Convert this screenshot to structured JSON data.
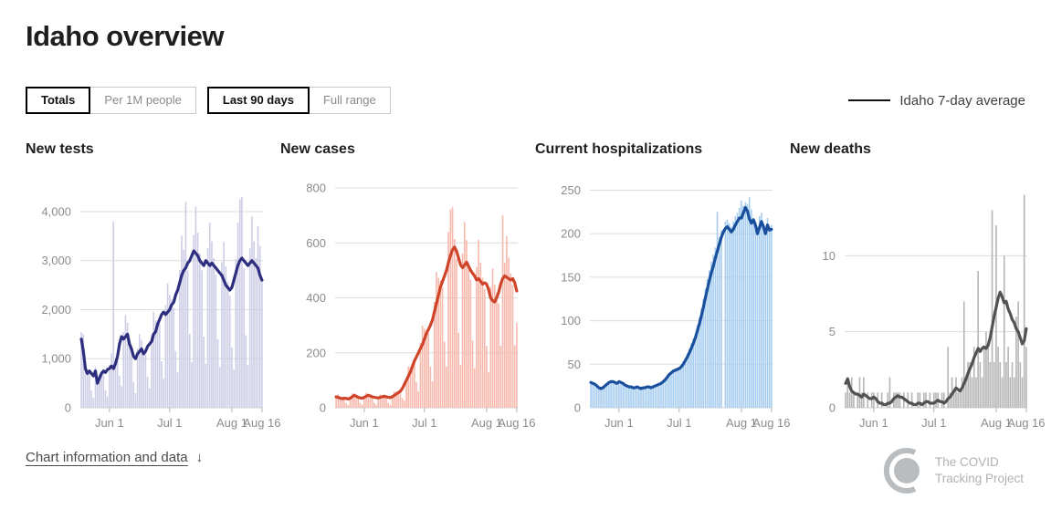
{
  "page": {
    "title": "Idaho overview"
  },
  "controls": {
    "metric": [
      {
        "label": "Totals",
        "active": true
      },
      {
        "label": "Per 1M people",
        "active": false
      }
    ],
    "range": [
      {
        "label": "Last 90 days",
        "active": true
      },
      {
        "label": "Full range",
        "active": false
      }
    ]
  },
  "legend": {
    "label": "Idaho 7-day average",
    "line_color": "#111111"
  },
  "footer": {
    "link_label": "Chart information and data",
    "link_arrow": "↓",
    "logo_line1": "The COVID",
    "logo_line2": "Tracking Project"
  },
  "chart_data": [
    {
      "type": "bar",
      "title": "New tests",
      "bar_color": "#cdcde6",
      "line_color": "#2e2e7f",
      "ylim": [
        0,
        4650
      ],
      "grid": true,
      "yticks": [
        {
          "v": 0,
          "label": "0"
        },
        {
          "v": 1000,
          "label": "1,000"
        },
        {
          "v": 2000,
          "label": "2,000"
        },
        {
          "v": 3000,
          "label": "3,000"
        },
        {
          "v": 4000,
          "label": "4,000"
        }
      ],
      "x_ticks": [
        {
          "label": "Jun 1",
          "day": 14
        },
        {
          "label": "Jul 1",
          "day": 44
        },
        {
          "label": "Aug 1",
          "day": 75
        },
        {
          "label": "Aug 16",
          "day": 90
        }
      ],
      "bars": [
        1540,
        1500,
        920,
        740,
        710,
        350,
        200,
        830,
        650,
        690,
        740,
        710,
        360,
        230,
        880,
        1110,
        3800,
        950,
        1000,
        650,
        440,
        1540,
        1890,
        1730,
        1370,
        1140,
        530,
        300,
        1210,
        1500,
        1380,
        1160,
        1090,
        630,
        390,
        1490,
        1950,
        1780,
        1790,
        1710,
        950,
        590,
        2090,
        2540,
        2300,
        2210,
        2040,
        1150,
        720,
        2810,
        3510,
        3220,
        4200,
        2800,
        1500,
        930,
        3520,
        4100,
        3570,
        3150,
        2800,
        1450,
        900,
        3250,
        3770,
        3390,
        3050,
        2710,
        1400,
        830,
        2970,
        3380,
        2880,
        2570,
        2280,
        1230,
        780,
        3030,
        3770,
        4250,
        4300,
        2850,
        1480,
        870,
        3250,
        3900,
        3390,
        3050,
        3700,
        3300,
        2560
      ],
      "series": [
        {
          "name": "Idaho 7-day average",
          "values": [
            1400,
            1150,
            800,
            700,
            750,
            700,
            650,
            750,
            500,
            600,
            700,
            750,
            720,
            780,
            800,
            850,
            800,
            900,
            1050,
            1300,
            1450,
            1400,
            1450,
            1500,
            1300,
            1200,
            1050,
            1000,
            1100,
            1150,
            1200,
            1100,
            1150,
            1250,
            1300,
            1350,
            1500,
            1550,
            1700,
            1800,
            1900,
            1950,
            1900,
            1950,
            2000,
            2100,
            2150,
            2300,
            2400,
            2550,
            2700,
            2800,
            2850,
            2950,
            3000,
            3100,
            3200,
            3150,
            3100,
            3000,
            2950,
            2900,
            3000,
            2950,
            2900,
            2950,
            2900,
            2850,
            2800,
            2750,
            2700,
            2600,
            2500,
            2450,
            2400,
            2450,
            2600,
            2750,
            2900,
            3000,
            3050,
            3000,
            2950,
            2900,
            2950,
            3000,
            2950,
            2900,
            2850,
            2700,
            2600
          ]
        }
      ]
    },
    {
      "type": "bar",
      "title": "New cases",
      "bar_color": "#f7b8ac",
      "line_color": "#cf4429",
      "ylim": [
        0,
        830
      ],
      "grid": true,
      "yticks": [
        {
          "v": 0,
          "label": "0"
        },
        {
          "v": 200,
          "label": "200"
        },
        {
          "v": 400,
          "label": "400"
        },
        {
          "v": 600,
          "label": "600"
        },
        {
          "v": 800,
          "label": "800"
        }
      ],
      "x_ticks": [
        {
          "label": "Jun 1",
          "day": 14
        },
        {
          "label": "Jul 1",
          "day": 44
        },
        {
          "label": "Aug 1",
          "day": 75
        },
        {
          "label": "Aug 16",
          "day": 90
        }
      ],
      "bars": [
        44,
        49,
        40,
        35,
        33,
        17,
        10,
        39,
        52,
        52,
        40,
        36,
        18,
        11,
        42,
        55,
        52,
        45,
        38,
        19,
        11,
        40,
        49,
        46,
        44,
        38,
        19,
        11,
        44,
        59,
        58,
        58,
        57,
        35,
        26,
        110,
        150,
        150,
        158,
        162,
        93,
        60,
        237,
        299,
        288,
        284,
        271,
        150,
        96,
        385,
        494,
        472,
        462,
        437,
        240,
        150,
        640,
        722,
        730,
        614,
        542,
        273,
        156,
        561,
        676,
        610,
        525,
        466,
        245,
        144,
        512,
        611,
        529,
        473,
        432,
        225,
        129,
        440,
        507,
        448,
        420,
        380,
        225,
        700,
        528,
        624,
        546,
        488,
        447,
        228,
        310
      ],
      "series": [
        {
          "name": "Idaho 7-day average",
          "values": [
            40,
            38,
            35,
            33,
            35,
            34,
            32,
            35,
            40,
            45,
            42,
            38,
            36,
            35,
            38,
            42,
            45,
            43,
            40,
            38,
            37,
            36,
            38,
            40,
            42,
            40,
            38,
            37,
            40,
            45,
            50,
            55,
            60,
            70,
            85,
            100,
            115,
            130,
            150,
            170,
            185,
            200,
            215,
            230,
            250,
            270,
            285,
            300,
            320,
            350,
            380,
            410,
            440,
            460,
            480,
            500,
            530,
            555,
            575,
            585,
            570,
            545,
            520,
            510,
            520,
            530,
            515,
            500,
            490,
            480,
            465,
            470,
            460,
            450,
            455,
            450,
            430,
            400,
            390,
            385,
            400,
            420,
            450,
            470,
            480,
            475,
            470,
            465,
            470,
            455,
            425
          ]
        }
      ]
    },
    {
      "type": "bar",
      "title": "Current hospitalizations",
      "bar_color": "#a6cdf0",
      "line_color": "#1a4f9d",
      "ylim": [
        0,
        262
      ],
      "grid": true,
      "yticks": [
        {
          "v": 0,
          "label": "0"
        },
        {
          "v": 50,
          "label": "50"
        },
        {
          "v": 100,
          "label": "100"
        },
        {
          "v": 150,
          "label": "150"
        },
        {
          "v": 200,
          "label": "200"
        },
        {
          "v": 250,
          "label": "250"
        }
      ],
      "x_ticks": [
        {
          "label": "Jun 1",
          "day": 14
        },
        {
          "label": "Jul 1",
          "day": 44
        },
        {
          "label": "Aug 1",
          "day": 75
        },
        {
          "label": "Aug 16",
          "day": 90
        }
      ],
      "bars": [
        30,
        28,
        26,
        24,
        22,
        21,
        24,
        26,
        28,
        30,
        31,
        30,
        28,
        27,
        31,
        30,
        28,
        25,
        24,
        23,
        25,
        22,
        24,
        25,
        22,
        21,
        24,
        22,
        25,
        23,
        22,
        25,
        26,
        27,
        28,
        29,
        31,
        34,
        37,
        40,
        42,
        44,
        45,
        46,
        47,
        49,
        53,
        57,
        62,
        68,
        74,
        80,
        78,
        95,
        104,
        114,
        125,
        137,
        148,
        158,
        168,
        176,
        184,
        225,
        196,
        204,
        0,
        214,
        216,
        212,
        208,
        214,
        220,
        224,
        230,
        238,
        232,
        236,
        234,
        242,
        228,
        218,
        214,
        208,
        220,
        224,
        212,
        204,
        218,
        208,
        210
      ],
      "series": [
        {
          "name": "Idaho 7-day average",
          "values": [
            29,
            28,
            27,
            25,
            23,
            22,
            23,
            25,
            27,
            29,
            30,
            30,
            29,
            28,
            30,
            29,
            28,
            26,
            25,
            24,
            24,
            23,
            23,
            24,
            23,
            22,
            23,
            23,
            24,
            24,
            23,
            24,
            25,
            26,
            27,
            28,
            30,
            32,
            35,
            38,
            40,
            42,
            43,
            44,
            45,
            47,
            50,
            54,
            58,
            63,
            68,
            74,
            80,
            88,
            96,
            105,
            115,
            126,
            136,
            146,
            155,
            163,
            172,
            180,
            188,
            196,
            202,
            206,
            208,
            205,
            202,
            205,
            210,
            214,
            218,
            218,
            224,
            230,
            226,
            217,
            212,
            216,
            210,
            200,
            207,
            214,
            208,
            200,
            210,
            204,
            205
          ]
        }
      ]
    },
    {
      "type": "bar",
      "title": "New deaths",
      "bar_color": "#b5b5b5",
      "line_color": "#525252",
      "ylim": [
        0,
        15
      ],
      "grid": true,
      "yticks": [
        {
          "v": 0,
          "label": "0"
        },
        {
          "v": 5,
          "label": "5"
        },
        {
          "v": 10,
          "label": "10"
        }
      ],
      "x_ticks": [
        {
          "label": "Jun 1",
          "day": 14
        },
        {
          "label": "Jul 1",
          "day": 44
        },
        {
          "label": "Aug 1",
          "day": 75
        },
        {
          "label": "Aug 16",
          "day": 90
        }
      ],
      "bars": [
        1,
        2,
        1,
        2,
        1,
        0,
        1,
        2,
        1,
        2,
        0,
        1,
        0,
        1,
        1,
        0,
        1,
        0,
        1,
        0,
        0,
        1,
        2,
        0,
        1,
        1,
        1,
        1,
        0,
        1,
        0,
        1,
        0,
        1,
        0,
        0,
        1,
        1,
        0,
        1,
        1,
        0,
        1,
        0,
        1,
        1,
        1,
        0,
        1,
        1,
        0,
        4,
        1,
        2,
        1,
        2,
        1,
        1,
        2,
        7,
        2,
        3,
        3,
        2,
        4,
        2,
        9,
        3,
        2,
        4,
        5,
        4,
        3,
        13,
        3,
        12,
        4,
        3,
        2,
        10,
        3,
        4,
        2,
        3,
        2,
        6,
        7,
        3,
        2,
        14,
        4
      ],
      "series": [
        {
          "name": "Idaho 7-day average",
          "values": [
            1.6,
            1.9,
            1.4,
            1.1,
            1.0,
            0.9,
            0.9,
            0.8,
            0.7,
            0.9,
            0.8,
            0.7,
            0.6,
            0.6,
            0.7,
            0.6,
            0.4,
            0.3,
            0.3,
            0.2,
            0.2,
            0.3,
            0.3,
            0.4,
            0.6,
            0.7,
            0.8,
            0.7,
            0.7,
            0.6,
            0.5,
            0.4,
            0.3,
            0.3,
            0.2,
            0.2,
            0.3,
            0.3,
            0.2,
            0.3,
            0.4,
            0.4,
            0.3,
            0.3,
            0.3,
            0.4,
            0.5,
            0.4,
            0.4,
            0.3,
            0.4,
            0.6,
            0.7,
            0.9,
            1.1,
            1.3,
            1.2,
            1.1,
            1.3,
            1.6,
            1.9,
            2.3,
            2.6,
            2.9,
            3.3,
            3.6,
            3.9,
            3.7,
            3.9,
            4.0,
            3.9,
            4.1,
            4.6,
            5.3,
            6.0,
            6.6,
            7.2,
            7.6,
            7.3,
            6.9,
            7.0,
            6.5,
            6.2,
            5.8,
            5.6,
            5.2,
            5.0,
            4.6,
            4.2,
            4.4,
            5.2
          ]
        }
      ]
    }
  ]
}
